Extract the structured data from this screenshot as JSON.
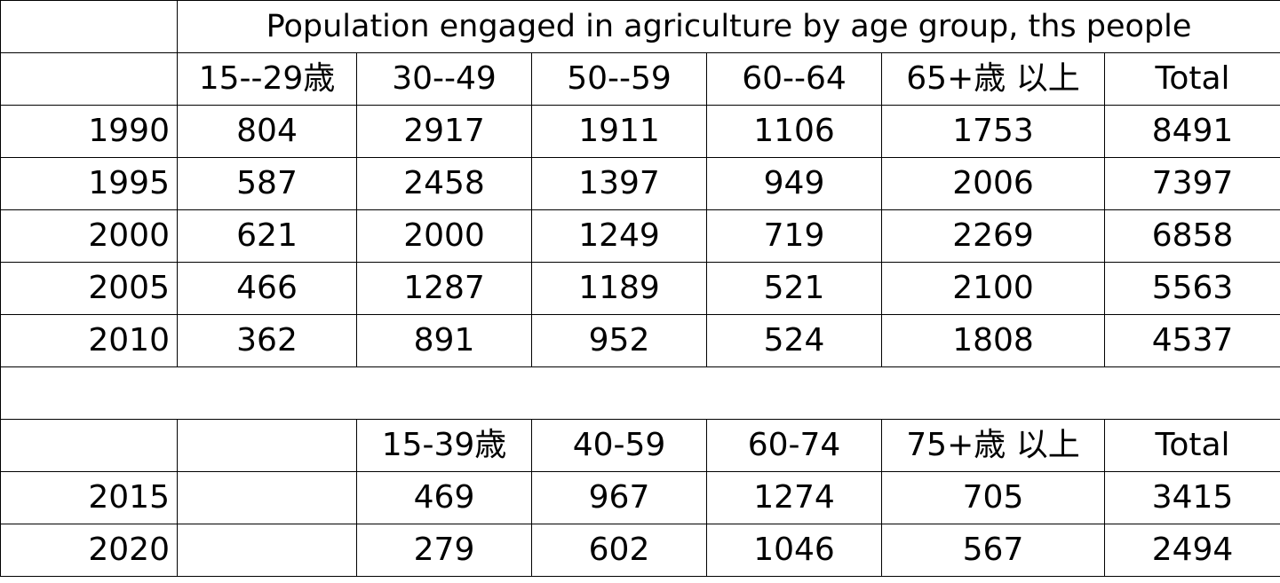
{
  "title": "Population engaged in agriculture by age group, ths people",
  "table1": {
    "headers": [
      "15--29歳",
      "30--49",
      "50--59",
      "60--64",
      "65+歳 以上",
      "Total"
    ],
    "rows": [
      {
        "year": "1990",
        "values": [
          "804",
          "2917",
          "1911",
          "1106",
          "1753",
          "8491"
        ]
      },
      {
        "year": "1995",
        "values": [
          "587",
          "2458",
          "1397",
          "949",
          "2006",
          "7397"
        ]
      },
      {
        "year": "2000",
        "values": [
          "621",
          "2000",
          "1249",
          "719",
          "2269",
          "6858"
        ]
      },
      {
        "year": "2005",
        "values": [
          "466",
          "1287",
          "1189",
          "521",
          "2100",
          "5563"
        ]
      },
      {
        "year": "2010",
        "values": [
          "362",
          "891",
          "952",
          "524",
          "1808",
          "4537"
        ]
      }
    ]
  },
  "table2": {
    "headers": [
      "",
      "15-39歳",
      "40-59",
      "60-74",
      "75+歳 以上",
      "Total"
    ],
    "rows": [
      {
        "year": "2015",
        "values": [
          "",
          "469",
          "967",
          "1274",
          "705",
          "3415"
        ]
      },
      {
        "year": "2020",
        "values": [
          "",
          "279",
          "602",
          "1046",
          "567",
          "2494"
        ]
      }
    ]
  }
}
